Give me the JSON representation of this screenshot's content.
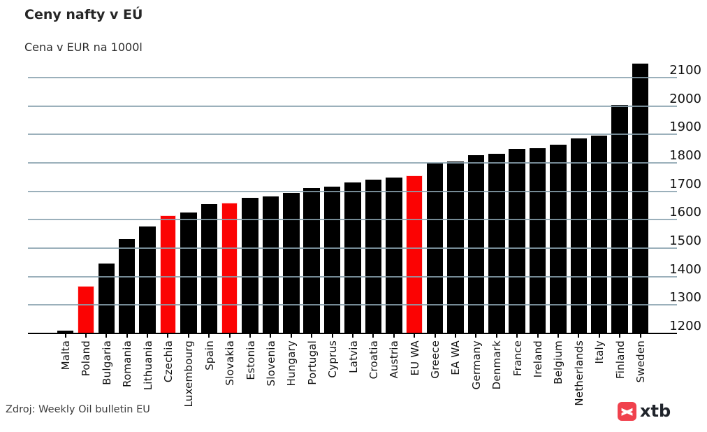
{
  "header": {
    "title": "Ceny nafty v EÚ",
    "subtitle": "Cena v EUR na 1000l"
  },
  "footer": {
    "source": "Zdroj: Weekly Oil bulletin EU",
    "logo_text": "xtb",
    "logo_color": "#f0414d"
  },
  "chart_data": {
    "type": "bar",
    "title": "Ceny nafty v EÚ",
    "subtitle": "Cena v EUR na 1000l",
    "categories": [
      "Malta",
      "Poland",
      "Bulgaria",
      "Romania",
      "Lithuania",
      "Czechia",
      "Luxembourg",
      "Spain",
      "Slovakia",
      "Estonia",
      "Slovenia",
      "Hungary",
      "Portugal",
      "Cyprus",
      "Latvia",
      "Croatia",
      "Austria",
      "EU WA",
      "Greece",
      "EA WA",
      "Germany",
      "Denmark",
      "France",
      "Ireland",
      "Belgium",
      "Netherlands",
      "Italy",
      "Finland",
      "Sweden"
    ],
    "values": [
      1210,
      1367,
      1446,
      1532,
      1576,
      1616,
      1625,
      1655,
      1660,
      1677,
      1681,
      1694,
      1712,
      1716,
      1731,
      1741,
      1748,
      1756,
      1800,
      1805,
      1827,
      1832,
      1849,
      1852,
      1864,
      1886,
      1896,
      2004,
      2149
    ],
    "highlighted_indexes": [
      1,
      5,
      8,
      17
    ],
    "bar_color": "#000000",
    "highlight_color": "#fb0303",
    "highlight_edge_color": "#ffd9d9",
    "yticks": [
      1200,
      1300,
      1400,
      1500,
      1600,
      1700,
      1800,
      1900,
      2000,
      2100
    ],
    "ylim": [
      1200,
      2160
    ],
    "grid": "horizontal gridlines drawn over bars",
    "gridline_color": "rgba(138,162,175,0.85)",
    "legend": "none",
    "xlabel": "",
    "ylabel": ""
  }
}
